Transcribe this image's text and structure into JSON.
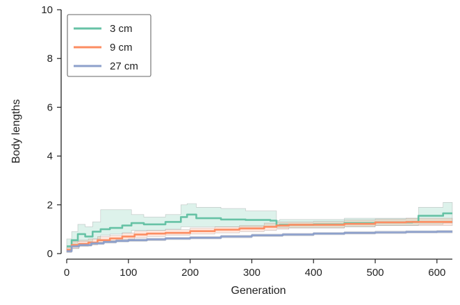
{
  "chart_data": {
    "type": "line",
    "title": "",
    "xlabel": "Generation",
    "ylabel": "Body lengths",
    "xlim": [
      0,
      625
    ],
    "ylim": [
      0,
      10
    ],
    "xticks": [
      0,
      100,
      200,
      300,
      400,
      500,
      600
    ],
    "yticks": [
      0,
      2,
      4,
      6,
      8,
      10
    ],
    "grid": false,
    "legend": {
      "position": "top-left"
    },
    "series": [
      {
        "name": "3 cm",
        "color": "#66c2a5",
        "step": true,
        "x": [
          0,
          8,
          18,
          30,
          42,
          55,
          70,
          90,
          105,
          125,
          160,
          185,
          195,
          210,
          250,
          290,
          330,
          340,
          345,
          400,
          450,
          500,
          560,
          570,
          610,
          625
        ],
        "y": [
          0.3,
          0.55,
          0.8,
          0.7,
          0.9,
          1.0,
          1.05,
          1.15,
          1.25,
          1.2,
          1.3,
          1.5,
          1.6,
          1.45,
          1.4,
          1.38,
          1.35,
          1.15,
          1.18,
          1.2,
          1.25,
          1.28,
          1.3,
          1.55,
          1.65,
          1.65
        ],
        "lower": [
          0.15,
          0.3,
          0.5,
          0.5,
          0.6,
          0.75,
          0.8,
          0.85,
          0.95,
          0.95,
          1.0,
          1.1,
          1.1,
          1.1,
          1.1,
          1.1,
          1.1,
          1.05,
          1.05,
          1.05,
          1.1,
          1.15,
          1.15,
          1.2,
          1.25,
          1.25
        ],
        "upper": [
          0.6,
          0.9,
          1.2,
          1.1,
          1.3,
          1.8,
          1.8,
          1.8,
          1.6,
          1.5,
          1.6,
          2.0,
          2.05,
          1.9,
          1.85,
          1.75,
          1.75,
          1.35,
          1.4,
          1.4,
          1.45,
          1.45,
          1.45,
          1.9,
          2.1,
          2.1
        ]
      },
      {
        "name": "9 cm",
        "color": "#fc8d62",
        "step": true,
        "x": [
          0,
          8,
          20,
          35,
          50,
          70,
          90,
          110,
          130,
          160,
          200,
          240,
          280,
          320,
          340,
          360,
          400,
          450,
          500,
          550,
          600,
          625
        ],
        "y": [
          0.15,
          0.35,
          0.4,
          0.45,
          0.55,
          0.62,
          0.7,
          0.78,
          0.82,
          0.85,
          0.92,
          0.98,
          1.03,
          1.1,
          1.15,
          1.18,
          1.18,
          1.22,
          1.28,
          1.3,
          1.3,
          1.3
        ],
        "lower": [
          0.05,
          0.2,
          0.3,
          0.35,
          0.45,
          0.52,
          0.58,
          0.65,
          0.7,
          0.75,
          0.8,
          0.85,
          0.9,
          0.95,
          1.0,
          1.05,
          1.05,
          1.1,
          1.15,
          1.15,
          1.15,
          1.15
        ],
        "upper": [
          0.25,
          0.5,
          0.55,
          0.6,
          0.7,
          0.75,
          0.85,
          0.92,
          0.95,
          0.98,
          1.05,
          1.1,
          1.15,
          1.25,
          1.3,
          1.3,
          1.32,
          1.38,
          1.42,
          1.45,
          1.45,
          1.45
        ]
      },
      {
        "name": "27 cm",
        "color": "#8da0cb",
        "step": true,
        "x": [
          0,
          8,
          20,
          40,
          60,
          80,
          100,
          130,
          160,
          200,
          250,
          300,
          350,
          400,
          450,
          500,
          550,
          600,
          625
        ],
        "y": [
          0.1,
          0.3,
          0.35,
          0.42,
          0.48,
          0.52,
          0.55,
          0.58,
          0.62,
          0.65,
          0.7,
          0.75,
          0.78,
          0.82,
          0.85,
          0.87,
          0.89,
          0.9,
          0.9
        ],
        "lower": [
          0.05,
          0.22,
          0.3,
          0.37,
          0.43,
          0.47,
          0.5,
          0.53,
          0.57,
          0.6,
          0.65,
          0.7,
          0.73,
          0.77,
          0.8,
          0.82,
          0.84,
          0.85,
          0.85
        ],
        "upper": [
          0.15,
          0.38,
          0.42,
          0.48,
          0.53,
          0.57,
          0.6,
          0.63,
          0.67,
          0.7,
          0.75,
          0.8,
          0.83,
          0.87,
          0.9,
          0.92,
          0.94,
          0.95,
          0.95
        ]
      }
    ]
  }
}
